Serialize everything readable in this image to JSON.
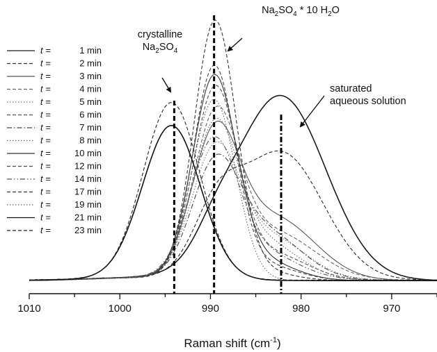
{
  "chart_data": {
    "type": "line",
    "xlabel": "Raman shift",
    "xlabel_unit": "(cm",
    "xlabel_unit_exp": "-1",
    "xlabel_unit_close": ")",
    "xlim": [
      1010,
      965
    ],
    "x_reversed": true,
    "x_ticks": [
      "1010",
      "1000",
      "990",
      "980",
      "970"
    ],
    "y_axis_shown": false,
    "grid": false,
    "legend_placement": "left",
    "legend_prefix": "t =",
    "annotations": {
      "crystalline": {
        "line1": "crystalline",
        "line2_a": "Na",
        "line2_sub": "2",
        "line2_b": "SO",
        "line2_sub2": "4",
        "x": 994
      },
      "decahydrate": {
        "a": "Na",
        "sub1": "2",
        "b": "SO",
        "sub2": "4",
        "c": " * 10 H",
        "sub3": "2",
        "d": "O",
        "x": 989.5
      },
      "solution": {
        "line1": "saturated",
        "line2": "aqueous solution",
        "x": 982.2
      }
    },
    "series": [
      {
        "name": "1 min",
        "legend": "1 min",
        "style": "solid",
        "gauss": [
          [
            982.3,
            3.7,
            5.0
          ],
          [
            989.5,
            0.4,
            2.2
          ]
        ],
        "base": 0.15
      },
      {
        "name": "2 min",
        "legend": "2 min",
        "style": "dash",
        "gauss": [
          [
            982.2,
            2.55,
            4.6
          ],
          [
            989.3,
            1.15,
            2.6
          ]
        ],
        "base": 0.16
      },
      {
        "name": "3 min",
        "legend": "3 min",
        "style": "solid",
        "gauss": [
          [
            989.5,
            2.7,
            2.6
          ],
          [
            983.0,
            1.25,
            4.5
          ]
        ],
        "base": 0.15
      },
      {
        "name": "4 min",
        "legend": "4 min",
        "style": "dash",
        "gauss": [
          [
            989.4,
            3.1,
            2.5
          ],
          [
            983.0,
            0.95,
            4.5
          ]
        ],
        "base": 0.16
      },
      {
        "name": "5 min",
        "legend": "5 min",
        "style": "dot",
        "gauss": [
          [
            989.5,
            2.45,
            2.6
          ],
          [
            983.5,
            0.85,
            4.0
          ]
        ],
        "base": 0.16
      },
      {
        "name": "6 min",
        "legend": "6 min",
        "style": "dash",
        "gauss": [
          [
            989.5,
            3.7,
            2.4
          ],
          [
            983.5,
            0.55,
            4.0
          ]
        ],
        "base": 0.15
      },
      {
        "name": "7 min",
        "legend": "7 min",
        "style": "dashdot",
        "gauss": [
          [
            989.5,
            2.1,
            2.6
          ],
          [
            984.0,
            0.95,
            4.0
          ]
        ],
        "base": 0.16
      },
      {
        "name": "8 min",
        "legend": "8 min",
        "style": "dot",
        "gauss": [
          [
            989.5,
            2.95,
            2.5
          ],
          [
            984.0,
            0.75,
            3.8
          ]
        ],
        "base": 0.15
      },
      {
        "name": "10 min",
        "legend": "10 min",
        "style": "solid",
        "gauss": [
          [
            989.6,
            3.95,
            2.4
          ],
          [
            984.5,
            0.4,
            3.6
          ]
        ],
        "base": 0.15
      },
      {
        "name": "12 min",
        "legend": "12 min",
        "style": "dash",
        "gauss": [
          [
            989.6,
            4.2,
            2.3
          ],
          [
            984.0,
            0.3,
            3.5
          ]
        ],
        "base": 0.15
      },
      {
        "name": "14 min",
        "legend": "14 min",
        "style": "dashdotdot",
        "gauss": [
          [
            989.7,
            2.6,
            2.6
          ],
          [
            984.5,
            0.55,
            4.0
          ]
        ],
        "base": 0.16
      },
      {
        "name": "17 min",
        "legend": "17 min",
        "style": "dash",
        "gauss": [
          [
            989.5,
            5.1,
            2.3
          ],
          [
            985.0,
            0.2,
            3.5
          ]
        ],
        "base": 0.15
      },
      {
        "name": "19 min",
        "legend": "19 min",
        "style": "dot",
        "gauss": [
          [
            989.6,
            3.6,
            2.4
          ]
        ],
        "base": 0.15
      },
      {
        "name": "21 min",
        "legend": "21 min",
        "style": "solid",
        "gauss": [
          [
            994.3,
            3.05,
            3.2
          ]
        ],
        "base": 0.15
      },
      {
        "name": "23 min",
        "legend": "23 min",
        "style": "dash",
        "gauss": [
          [
            994.3,
            3.5,
            3.1
          ]
        ],
        "base": 0.16
      }
    ],
    "peak_markers": [
      {
        "x": 994.0,
        "style": "dash"
      },
      {
        "x": 989.6,
        "style": "dash"
      },
      {
        "x": 982.2,
        "style": "dashdot"
      }
    ]
  }
}
